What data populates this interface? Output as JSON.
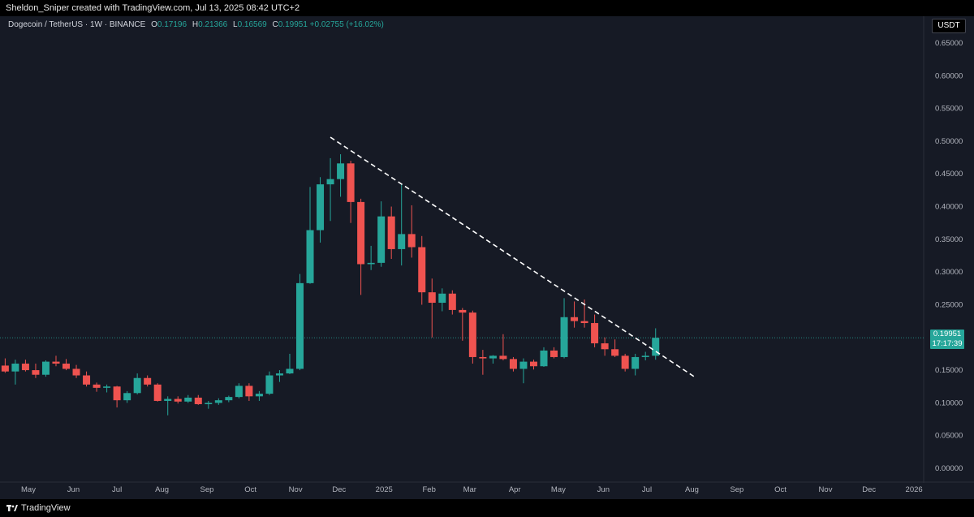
{
  "header": {
    "attribution": "Sheldon_Sniper created with TradingView.com, Jul 13, 2025 08:42 UTC+2"
  },
  "legend": {
    "symbol": "Dogecoin / TetherUS · 1W · BINANCE",
    "open_label": "O",
    "open": "0.17196",
    "high_label": "H",
    "high": "0.21366",
    "low_label": "L",
    "low": "0.16569",
    "close_label": "C",
    "close": "0.19951",
    "change": "+0.02755 (+16.02%)"
  },
  "price_axis": {
    "unit": "USDT",
    "last_price": "0.19951",
    "countdown": "17:17:39"
  },
  "footer": {
    "brand": "TradingView"
  },
  "colors": {
    "up": "#26a69a",
    "down": "#ef5350",
    "background": "#161a25",
    "trendline": "#ffffff"
  },
  "chart_data": {
    "type": "candlestick",
    "y_ticks": [
      "0.65000",
      "0.60000",
      "0.55000",
      "0.50000",
      "0.45000",
      "0.40000",
      "0.35000",
      "0.30000",
      "0.25000",
      "0.20000",
      "0.15000",
      "0.10000",
      "0.05000",
      "0.00000"
    ],
    "ylim": [
      0,
      0.65
    ],
    "x_ticks": [
      {
        "label": "May",
        "date": "2024-05-01"
      },
      {
        "label": "Jun",
        "date": "2024-06-01"
      },
      {
        "label": "Jul",
        "date": "2024-07-01"
      },
      {
        "label": "Aug",
        "date": "2024-08-01"
      },
      {
        "label": "Sep",
        "date": "2024-09-01"
      },
      {
        "label": "Oct",
        "date": "2024-10-01"
      },
      {
        "label": "Nov",
        "date": "2024-11-01"
      },
      {
        "label": "Dec",
        "date": "2024-12-01"
      },
      {
        "label": "2025",
        "date": "2025-01-01"
      },
      {
        "label": "Feb",
        "date": "2025-02-01"
      },
      {
        "label": "Mar",
        "date": "2025-03-01"
      },
      {
        "label": "Apr",
        "date": "2025-04-01"
      },
      {
        "label": "May",
        "date": "2025-05-01"
      },
      {
        "label": "Jun",
        "date": "2025-06-01"
      },
      {
        "label": "Jul",
        "date": "2025-07-01"
      },
      {
        "label": "Aug",
        "date": "2025-08-01"
      },
      {
        "label": "Sep",
        "date": "2025-09-01"
      },
      {
        "label": "Oct",
        "date": "2025-10-01"
      },
      {
        "label": "Nov",
        "date": "2025-11-01"
      },
      {
        "label": "Dec",
        "date": "2025-12-01"
      },
      {
        "label": "2026",
        "date": "2026-01-01"
      }
    ],
    "candles": [
      {
        "date": "2024-04-15",
        "o": 0.157,
        "h": 0.168,
        "l": 0.146,
        "c": 0.148
      },
      {
        "date": "2024-04-22",
        "o": 0.148,
        "h": 0.166,
        "l": 0.128,
        "c": 0.16
      },
      {
        "date": "2024-04-29",
        "o": 0.16,
        "h": 0.166,
        "l": 0.148,
        "c": 0.15
      },
      {
        "date": "2024-05-06",
        "o": 0.15,
        "h": 0.16,
        "l": 0.138,
        "c": 0.143
      },
      {
        "date": "2024-05-13",
        "o": 0.143,
        "h": 0.165,
        "l": 0.14,
        "c": 0.163
      },
      {
        "date": "2024-05-20",
        "o": 0.163,
        "h": 0.172,
        "l": 0.156,
        "c": 0.16
      },
      {
        "date": "2024-05-27",
        "o": 0.16,
        "h": 0.167,
        "l": 0.15,
        "c": 0.152
      },
      {
        "date": "2024-06-03",
        "o": 0.152,
        "h": 0.158,
        "l": 0.138,
        "c": 0.142
      },
      {
        "date": "2024-06-10",
        "o": 0.142,
        "h": 0.148,
        "l": 0.125,
        "c": 0.128
      },
      {
        "date": "2024-06-17",
        "o": 0.128,
        "h": 0.131,
        "l": 0.117,
        "c": 0.123
      },
      {
        "date": "2024-06-24",
        "o": 0.123,
        "h": 0.128,
        "l": 0.116,
        "c": 0.125
      },
      {
        "date": "2024-07-01",
        "o": 0.125,
        "h": 0.126,
        "l": 0.093,
        "c": 0.104
      },
      {
        "date": "2024-07-08",
        "o": 0.104,
        "h": 0.118,
        "l": 0.1,
        "c": 0.115
      },
      {
        "date": "2024-07-15",
        "o": 0.115,
        "h": 0.145,
        "l": 0.113,
        "c": 0.138
      },
      {
        "date": "2024-07-22",
        "o": 0.138,
        "h": 0.142,
        "l": 0.125,
        "c": 0.128
      },
      {
        "date": "2024-07-29",
        "o": 0.128,
        "h": 0.13,
        "l": 0.102,
        "c": 0.103
      },
      {
        "date": "2024-08-05",
        "o": 0.103,
        "h": 0.11,
        "l": 0.081,
        "c": 0.106
      },
      {
        "date": "2024-08-12",
        "o": 0.106,
        "h": 0.11,
        "l": 0.099,
        "c": 0.102
      },
      {
        "date": "2024-08-19",
        "o": 0.102,
        "h": 0.112,
        "l": 0.1,
        "c": 0.108
      },
      {
        "date": "2024-08-26",
        "o": 0.108,
        "h": 0.112,
        "l": 0.097,
        "c": 0.098
      },
      {
        "date": "2024-09-02",
        "o": 0.098,
        "h": 0.103,
        "l": 0.091,
        "c": 0.1
      },
      {
        "date": "2024-09-09",
        "o": 0.1,
        "h": 0.107,
        "l": 0.097,
        "c": 0.104
      },
      {
        "date": "2024-09-16",
        "o": 0.104,
        "h": 0.111,
        "l": 0.101,
        "c": 0.109
      },
      {
        "date": "2024-09-23",
        "o": 0.109,
        "h": 0.13,
        "l": 0.107,
        "c": 0.126
      },
      {
        "date": "2024-09-30",
        "o": 0.126,
        "h": 0.13,
        "l": 0.103,
        "c": 0.11
      },
      {
        "date": "2024-10-07",
        "o": 0.11,
        "h": 0.118,
        "l": 0.103,
        "c": 0.114
      },
      {
        "date": "2024-10-14",
        "o": 0.114,
        "h": 0.148,
        "l": 0.112,
        "c": 0.142
      },
      {
        "date": "2024-10-21",
        "o": 0.142,
        "h": 0.15,
        "l": 0.132,
        "c": 0.145
      },
      {
        "date": "2024-10-28",
        "o": 0.145,
        "h": 0.175,
        "l": 0.144,
        "c": 0.152
      },
      {
        "date": "2024-11-04",
        "o": 0.152,
        "h": 0.297,
        "l": 0.15,
        "c": 0.283
      },
      {
        "date": "2024-11-11",
        "o": 0.283,
        "h": 0.43,
        "l": 0.282,
        "c": 0.364
      },
      {
        "date": "2024-11-18",
        "o": 0.364,
        "h": 0.445,
        "l": 0.345,
        "c": 0.434
      },
      {
        "date": "2024-11-25",
        "o": 0.434,
        "h": 0.474,
        "l": 0.378,
        "c": 0.442
      },
      {
        "date": "2024-12-02",
        "o": 0.442,
        "h": 0.48,
        "l": 0.415,
        "c": 0.466
      },
      {
        "date": "2024-12-09",
        "o": 0.466,
        "h": 0.47,
        "l": 0.375,
        "c": 0.407
      },
      {
        "date": "2024-12-16",
        "o": 0.407,
        "h": 0.412,
        "l": 0.265,
        "c": 0.312
      },
      {
        "date": "2024-12-23",
        "o": 0.312,
        "h": 0.34,
        "l": 0.303,
        "c": 0.314
      },
      {
        "date": "2024-12-30",
        "o": 0.314,
        "h": 0.408,
        "l": 0.308,
        "c": 0.385
      },
      {
        "date": "2025-01-06",
        "o": 0.385,
        "h": 0.4,
        "l": 0.32,
        "c": 0.335
      },
      {
        "date": "2025-01-13",
        "o": 0.335,
        "h": 0.435,
        "l": 0.31,
        "c": 0.358
      },
      {
        "date": "2025-01-20",
        "o": 0.358,
        "h": 0.402,
        "l": 0.322,
        "c": 0.338
      },
      {
        "date": "2025-01-27",
        "o": 0.338,
        "h": 0.355,
        "l": 0.25,
        "c": 0.269
      },
      {
        "date": "2025-02-03",
        "o": 0.269,
        "h": 0.29,
        "l": 0.2,
        "c": 0.253
      },
      {
        "date": "2025-02-10",
        "o": 0.253,
        "h": 0.275,
        "l": 0.24,
        "c": 0.267
      },
      {
        "date": "2025-02-17",
        "o": 0.267,
        "h": 0.272,
        "l": 0.235,
        "c": 0.242
      },
      {
        "date": "2025-02-24",
        "o": 0.242,
        "h": 0.245,
        "l": 0.195,
        "c": 0.238
      },
      {
        "date": "2025-03-03",
        "o": 0.238,
        "h": 0.241,
        "l": 0.16,
        "c": 0.17
      },
      {
        "date": "2025-03-10",
        "o": 0.17,
        "h": 0.181,
        "l": 0.143,
        "c": 0.168
      },
      {
        "date": "2025-03-17",
        "o": 0.168,
        "h": 0.173,
        "l": 0.16,
        "c": 0.172
      },
      {
        "date": "2025-03-24",
        "o": 0.172,
        "h": 0.205,
        "l": 0.165,
        "c": 0.167
      },
      {
        "date": "2025-03-31",
        "o": 0.167,
        "h": 0.17,
        "l": 0.148,
        "c": 0.152
      },
      {
        "date": "2025-04-07",
        "o": 0.152,
        "h": 0.168,
        "l": 0.13,
        "c": 0.163
      },
      {
        "date": "2025-04-14",
        "o": 0.163,
        "h": 0.166,
        "l": 0.151,
        "c": 0.156
      },
      {
        "date": "2025-04-21",
        "o": 0.156,
        "h": 0.185,
        "l": 0.155,
        "c": 0.18
      },
      {
        "date": "2025-04-28",
        "o": 0.18,
        "h": 0.185,
        "l": 0.168,
        "c": 0.17
      },
      {
        "date": "2025-05-05",
        "o": 0.17,
        "h": 0.26,
        "l": 0.168,
        "c": 0.231
      },
      {
        "date": "2025-05-12",
        "o": 0.231,
        "h": 0.255,
        "l": 0.215,
        "c": 0.225
      },
      {
        "date": "2025-05-19",
        "o": 0.225,
        "h": 0.258,
        "l": 0.215,
        "c": 0.222
      },
      {
        "date": "2025-05-26",
        "o": 0.222,
        "h": 0.235,
        "l": 0.185,
        "c": 0.191
      },
      {
        "date": "2025-06-02",
        "o": 0.191,
        "h": 0.2,
        "l": 0.172,
        "c": 0.182
      },
      {
        "date": "2025-06-09",
        "o": 0.182,
        "h": 0.197,
        "l": 0.17,
        "c": 0.172
      },
      {
        "date": "2025-06-16",
        "o": 0.172,
        "h": 0.175,
        "l": 0.148,
        "c": 0.152
      },
      {
        "date": "2025-06-23",
        "o": 0.152,
        "h": 0.175,
        "l": 0.142,
        "c": 0.17
      },
      {
        "date": "2025-06-30",
        "o": 0.17,
        "h": 0.178,
        "l": 0.165,
        "c": 0.172
      },
      {
        "date": "2025-07-07",
        "o": 0.172,
        "h": 0.214,
        "l": 0.166,
        "c": 0.1995
      }
    ],
    "trendline": {
      "from": {
        "date": "2024-11-25",
        "price": 0.506
      },
      "to": {
        "date": "2025-08-04",
        "price": 0.138
      }
    },
    "last_price_line": 0.1995,
    "grid": false
  }
}
